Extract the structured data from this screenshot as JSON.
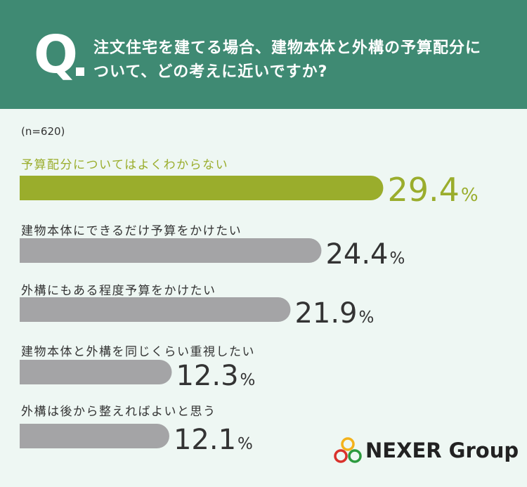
{
  "header": {
    "q_letter": "Q",
    "question_line1": "注文住宅を建てる場合、建物本体と外構の予算配分に",
    "question_line2": "ついて、どの考えに近いですか?"
  },
  "sample": "(n=620)",
  "chart_data": {
    "type": "bar",
    "title": "注文住宅を建てる場合、建物本体と外構の予算配分について、どの考えに近いですか?",
    "categories": [
      "予算配分についてはよくわからない",
      "建物本体にできるだけ予算をかけたい",
      "外構にもある程度予算をかけたい",
      "建物本体と外構を同じくらい重視したい",
      "外構は後から整えればよいと思う"
    ],
    "values": [
      29.4,
      24.4,
      21.9,
      12.3,
      12.1
    ],
    "value_labels": [
      "29.4",
      "24.4",
      "21.9",
      "12.3",
      "12.1"
    ],
    "unit": "%",
    "highlight_index": 0,
    "colors": {
      "highlight": "#9aad2c",
      "default": "#a4a4a6"
    }
  },
  "logo": {
    "text": "NEXER Group"
  }
}
